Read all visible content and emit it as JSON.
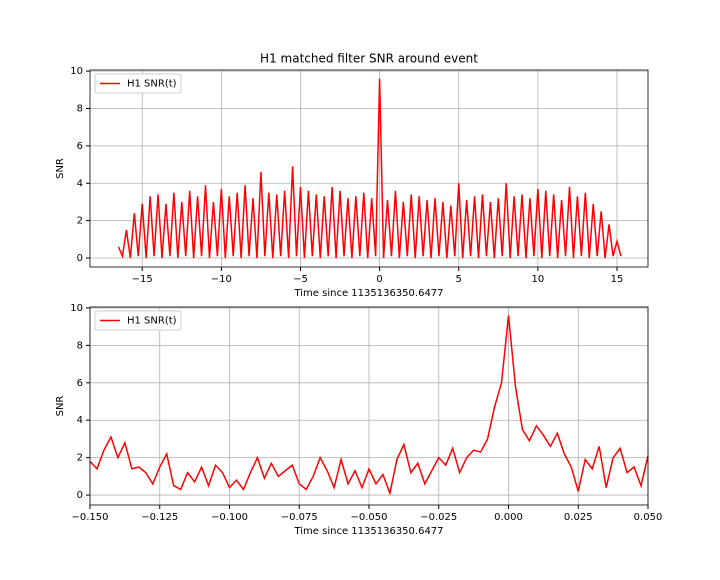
{
  "chart_data": [
    {
      "type": "line",
      "title": "H1 matched filter SNR around event",
      "xlabel": "Time since 1135136350.6477",
      "ylabel": "SNR",
      "legend": "upper left",
      "grid": true,
      "xlim": [
        -18.3,
        16.96
      ],
      "ylim": [
        -0.48,
        10.06
      ],
      "xticks": [
        {
          "value": -15,
          "label": "−15"
        },
        {
          "value": -10,
          "label": "−10"
        },
        {
          "value": -5,
          "label": "−5"
        },
        0,
        5,
        10,
        15
      ],
      "yticks": [
        0,
        2,
        4,
        6,
        8,
        10
      ],
      "x": [
        -16.5,
        -16.25,
        -16,
        -15.75,
        -15.5,
        -15.25,
        -15,
        -14.75,
        -14.5,
        -14.25,
        -14,
        -13.75,
        -13.5,
        -13.25,
        -13,
        -12.75,
        -12.5,
        -12.25,
        -12,
        -11.75,
        -11.5,
        -11.25,
        -11,
        -10.75,
        -10.5,
        -10.25,
        -10,
        -9.75,
        -9.5,
        -9.25,
        -9,
        -8.75,
        -8.5,
        -8.25,
        -8,
        -7.75,
        -7.5,
        -7.25,
        -7,
        -6.75,
        -6.5,
        -6.25,
        -6,
        -5.75,
        -5.5,
        -5.25,
        -5,
        -4.75,
        -4.5,
        -4.25,
        -4,
        -3.75,
        -3.5,
        -3.25,
        -3,
        -2.75,
        -2.5,
        -2.25,
        -2,
        -1.75,
        -1.5,
        -1.25,
        -1,
        -0.75,
        -0.5,
        -0.25,
        0,
        0.25,
        0.5,
        0.75,
        1,
        1.25,
        1.5,
        1.75,
        2,
        2.25,
        2.5,
        2.75,
        3,
        3.25,
        3.5,
        3.75,
        4,
        4.25,
        4.5,
        4.75,
        5,
        5.25,
        5.5,
        5.75,
        6,
        6.25,
        6.5,
        6.75,
        7,
        7.25,
        7.5,
        7.75,
        8,
        8.25,
        8.5,
        8.75,
        9,
        9.25,
        9.5,
        9.75,
        10,
        10.25,
        10.5,
        10.75,
        11,
        11.25,
        11.5,
        11.75,
        12,
        12.25,
        12.5,
        12.75,
        13,
        13.25,
        13.5,
        13.75,
        14,
        14.25,
        14.5,
        14.75,
        15,
        15.25
      ],
      "series": [
        {
          "name": "H1 SNR(t)",
          "color": "#ff0000",
          "values": [
            0.6,
            0.1,
            1.5,
            0,
            2.4,
            0.1,
            2.9,
            0,
            3.3,
            0.1,
            3.4,
            0,
            2.9,
            0.1,
            3.5,
            0,
            3.0,
            0.1,
            3.6,
            0,
            3.3,
            0.1,
            3.9,
            0,
            3.0,
            0.1,
            3.7,
            0,
            3.3,
            0.1,
            3.5,
            0,
            3.9,
            0.1,
            3.2,
            0,
            4.6,
            0.1,
            3.5,
            0,
            3.4,
            0.1,
            3.6,
            0,
            4.9,
            0.1,
            3.8,
            0,
            3.6,
            0.1,
            3.4,
            0,
            3.3,
            0.1,
            3.8,
            0,
            3.6,
            0.1,
            3.2,
            0,
            3.3,
            0.1,
            3.5,
            0,
            3.2,
            0.1,
            9.6,
            0,
            3.1,
            0.1,
            3.6,
            0,
            3.0,
            0.1,
            3.4,
            0,
            3.3,
            0.1,
            3.1,
            0,
            3.2,
            0.1,
            3.0,
            0,
            2.8,
            0.1,
            4.0,
            0,
            3.1,
            0.1,
            3.3,
            0,
            3.4,
            0.1,
            3.0,
            0,
            3.2,
            0.1,
            4.0,
            0,
            3.3,
            0.1,
            3.4,
            0,
            3.2,
            0.1,
            3.7,
            0,
            3.6,
            0.1,
            3.4,
            0,
            3.1,
            0.1,
            3.8,
            0,
            3.3,
            0.1,
            3.5,
            0,
            2.9,
            0.1,
            2.5,
            0,
            1.8,
            0.1,
            0.9,
            0.1
          ]
        }
      ]
    },
    {
      "type": "line",
      "xlabel": "Time since 1135136350.6477",
      "ylabel": "SNR",
      "legend": "upper left",
      "grid": true,
      "xlim": [
        -0.15,
        0.05
      ],
      "ylim": [
        -0.53,
        10.05
      ],
      "xticks": [
        {
          "value": -0.15,
          "label": "−0.150"
        },
        {
          "value": -0.125,
          "label": "−0.125"
        },
        {
          "value": -0.1,
          "label": "−0.100"
        },
        {
          "value": -0.075,
          "label": "−0.075"
        },
        {
          "value": -0.05,
          "label": "−0.050"
        },
        {
          "value": -0.025,
          "label": "−0.025"
        },
        {
          "value": 0,
          "label": "0.000"
        },
        {
          "value": 0.025,
          "label": "0.025"
        },
        {
          "value": 0.05,
          "label": "0.050"
        }
      ],
      "yticks": [
        0,
        2,
        4,
        6,
        8,
        10
      ],
      "x": [
        -0.15,
        -0.1475,
        -0.145,
        -0.1425,
        -0.14,
        -0.1375,
        -0.135,
        -0.1325,
        -0.13,
        -0.1275,
        -0.125,
        -0.1225,
        -0.12,
        -0.1175,
        -0.115,
        -0.1125,
        -0.11,
        -0.1075,
        -0.105,
        -0.1025,
        -0.1,
        -0.0975,
        -0.095,
        -0.0925,
        -0.09,
        -0.0875,
        -0.085,
        -0.0825,
        -0.08,
        -0.0775,
        -0.075,
        -0.0725,
        -0.07,
        -0.0675,
        -0.065,
        -0.0625,
        -0.06,
        -0.0575,
        -0.055,
        -0.0525,
        -0.05,
        -0.0475,
        -0.045,
        -0.0425,
        -0.04,
        -0.0375,
        -0.035,
        -0.0325,
        -0.03,
        -0.0275,
        -0.025,
        -0.0225,
        -0.02,
        -0.0175,
        -0.015,
        -0.0125,
        -0.01,
        -0.0075,
        -0.005,
        -0.0025,
        0,
        0.0025,
        0.005,
        0.0075,
        0.01,
        0.0125,
        0.015,
        0.0175,
        0.02,
        0.0225,
        0.025,
        0.0275,
        0.03,
        0.0325,
        0.035,
        0.0375,
        0.04,
        0.0425,
        0.045,
        0.0475,
        0.05
      ],
      "series": [
        {
          "name": "H1 SNR(t)",
          "color": "#ff0000",
          "values": [
            1.8,
            1.4,
            2.4,
            3.1,
            2.0,
            2.8,
            1.4,
            1.5,
            1.2,
            0.6,
            1.5,
            2.2,
            0.5,
            0.3,
            1.2,
            0.7,
            1.5,
            0.5,
            1.6,
            1.2,
            0.4,
            0.8,
            0.3,
            1.2,
            2.0,
            0.9,
            1.7,
            1.0,
            1.3,
            1.6,
            0.6,
            0.3,
            1.0,
            2.0,
            1.3,
            0.4,
            1.9,
            0.6,
            1.3,
            0.4,
            1.4,
            0.6,
            1.1,
            0.1,
            1.9,
            2.7,
            1.2,
            1.7,
            0.6,
            1.3,
            2.0,
            1.6,
            2.5,
            1.2,
            2.0,
            2.4,
            2.3,
            3.0,
            4.7,
            6.0,
            9.6,
            5.8,
            3.5,
            2.9,
            3.7,
            3.2,
            2.6,
            3.3,
            2.2,
            1.5,
            0.2,
            1.9,
            1.4,
            2.6,
            0.4,
            2.0,
            2.5,
            1.2,
            1.5,
            0.5,
            2.1
          ]
        }
      ]
    }
  ]
}
